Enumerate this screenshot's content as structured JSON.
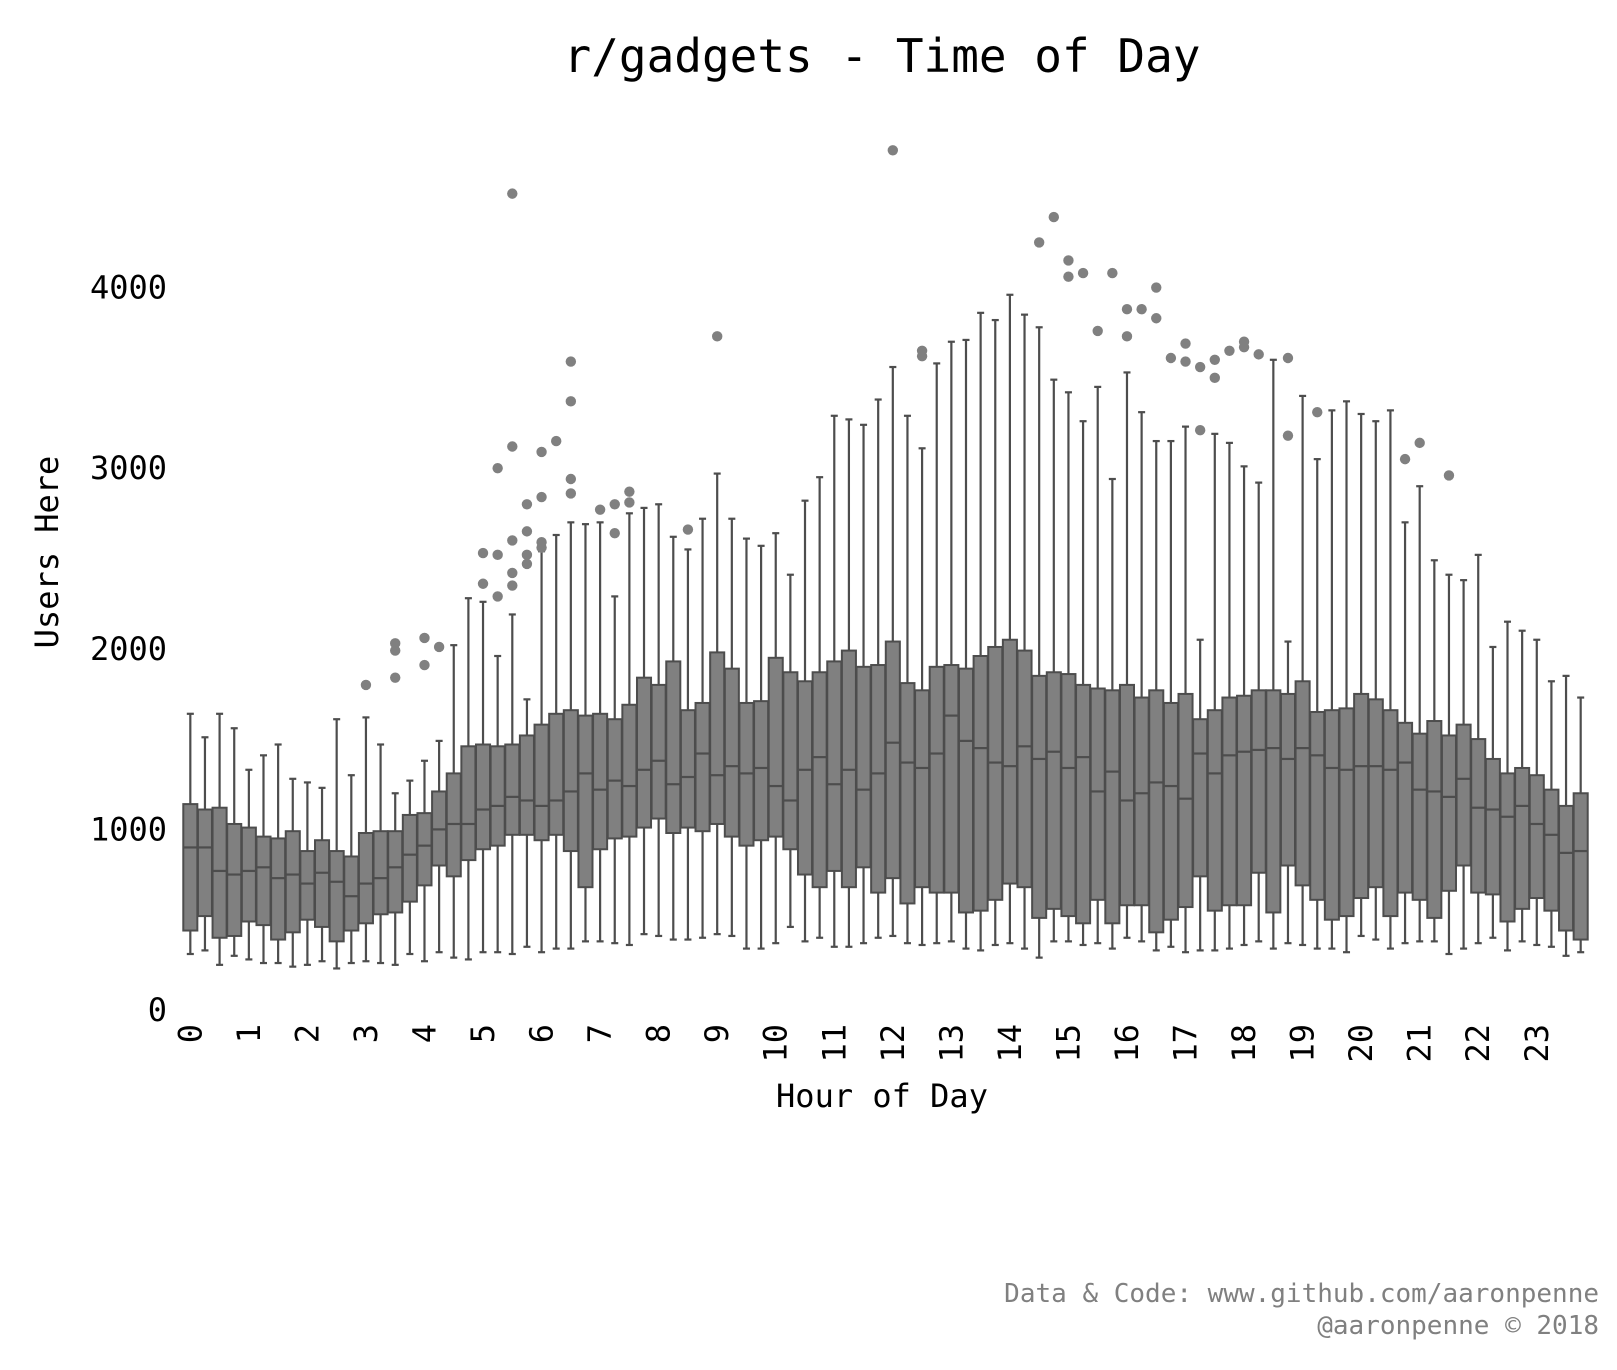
{
  "chart_data": {
    "type": "box",
    "title": "r/gadgets - Time of Day",
    "xlabel": "Hour of Day",
    "ylabel": "Users Here",
    "ylim": [
      0,
      4900
    ],
    "yticks": [
      0,
      1000,
      2000,
      3000,
      4000
    ],
    "xticks": [
      "0",
      "1",
      "2",
      "3",
      "4",
      "5",
      "6",
      "7",
      "8",
      "9",
      "10",
      "11",
      "12",
      "13",
      "14",
      "15",
      "16",
      "17",
      "18",
      "19",
      "20",
      "21",
      "22",
      "23"
    ],
    "boxes_per_hour": 4,
    "grid": false,
    "legend": "none",
    "colors": {
      "box_fill": "#808080",
      "box_edge": "#4d4d4d",
      "outlier": "#808080"
    },
    "series": [
      {
        "wl": 310,
        "q1": 440,
        "med": 900,
        "q3": 1140,
        "wh": 1640,
        "out": []
      },
      {
        "wl": 330,
        "q1": 520,
        "med": 900,
        "q3": 1110,
        "wh": 1510,
        "out": []
      },
      {
        "wl": 250,
        "q1": 400,
        "med": 770,
        "q3": 1120,
        "wh": 1640,
        "out": []
      },
      {
        "wl": 300,
        "q1": 410,
        "med": 750,
        "q3": 1030,
        "wh": 1560,
        "out": []
      },
      {
        "wl": 280,
        "q1": 490,
        "med": 770,
        "q3": 1010,
        "wh": 1330,
        "out": []
      },
      {
        "wl": 260,
        "q1": 470,
        "med": 790,
        "q3": 960,
        "wh": 1410,
        "out": []
      },
      {
        "wl": 260,
        "q1": 390,
        "med": 730,
        "q3": 950,
        "wh": 1470,
        "out": []
      },
      {
        "wl": 240,
        "q1": 430,
        "med": 750,
        "q3": 990,
        "wh": 1280,
        "out": []
      },
      {
        "wl": 250,
        "q1": 500,
        "med": 700,
        "q3": 880,
        "wh": 1260,
        "out": []
      },
      {
        "wl": 270,
        "q1": 460,
        "med": 760,
        "q3": 940,
        "wh": 1230,
        "out": []
      },
      {
        "wl": 230,
        "q1": 380,
        "med": 710,
        "q3": 880,
        "wh": 1610,
        "out": []
      },
      {
        "wl": 260,
        "q1": 440,
        "med": 630,
        "q3": 850,
        "wh": 1300,
        "out": []
      },
      {
        "wl": 270,
        "q1": 480,
        "med": 700,
        "q3": 980,
        "wh": 1620,
        "out": [
          1800
        ]
      },
      {
        "wl": 260,
        "q1": 530,
        "med": 730,
        "q3": 990,
        "wh": 1470,
        "out": []
      },
      {
        "wl": 250,
        "q1": 540,
        "med": 790,
        "q3": 990,
        "wh": 1200,
        "out": [
          2030,
          1990,
          1840
        ]
      },
      {
        "wl": 310,
        "q1": 600,
        "med": 860,
        "q3": 1080,
        "wh": 1270,
        "out": []
      },
      {
        "wl": 270,
        "q1": 690,
        "med": 910,
        "q3": 1090,
        "wh": 1380,
        "out": [
          2060,
          1910
        ]
      },
      {
        "wl": 320,
        "q1": 800,
        "med": 1000,
        "q3": 1210,
        "wh": 1490,
        "out": [
          2010
        ]
      },
      {
        "wl": 290,
        "q1": 740,
        "med": 1030,
        "q3": 1310,
        "wh": 2020,
        "out": []
      },
      {
        "wl": 280,
        "q1": 830,
        "med": 1030,
        "q3": 1460,
        "wh": 2280,
        "out": []
      },
      {
        "wl": 320,
        "q1": 890,
        "med": 1110,
        "q3": 1470,
        "wh": 2260,
        "out": [
          2530,
          2360
        ]
      },
      {
        "wl": 320,
        "q1": 910,
        "med": 1130,
        "q3": 1460,
        "wh": 1960,
        "out": [
          3000,
          2520,
          2290
        ]
      },
      {
        "wl": 310,
        "q1": 970,
        "med": 1180,
        "q3": 1470,
        "wh": 2190,
        "out": [
          4520,
          3120,
          2600,
          2420,
          2350
        ]
      },
      {
        "wl": 350,
        "q1": 970,
        "med": 1160,
        "q3": 1520,
        "wh": 1720,
        "out": [
          2800,
          2650,
          2520,
          2470
        ]
      },
      {
        "wl": 320,
        "q1": 940,
        "med": 1130,
        "q3": 1580,
        "wh": 2540,
        "out": [
          3090,
          2840,
          2590,
          2560
        ]
      },
      {
        "wl": 340,
        "q1": 970,
        "med": 1160,
        "q3": 1640,
        "wh": 2630,
        "out": [
          3150
        ]
      },
      {
        "wl": 340,
        "q1": 880,
        "med": 1210,
        "q3": 1660,
        "wh": 2700,
        "out": [
          3590,
          3370,
          2940,
          2860
        ]
      },
      {
        "wl": 380,
        "q1": 680,
        "med": 1310,
        "q3": 1630,
        "wh": 2690,
        "out": []
      },
      {
        "wl": 380,
        "q1": 890,
        "med": 1220,
        "q3": 1640,
        "wh": 2700,
        "out": [
          2770
        ]
      },
      {
        "wl": 370,
        "q1": 950,
        "med": 1270,
        "q3": 1610,
        "wh": 2290,
        "out": [
          2800,
          2640
        ]
      },
      {
        "wl": 360,
        "q1": 960,
        "med": 1240,
        "q3": 1690,
        "wh": 2750,
        "out": [
          2870,
          2810
        ]
      },
      {
        "wl": 420,
        "q1": 1010,
        "med": 1330,
        "q3": 1840,
        "wh": 2780,
        "out": []
      },
      {
        "wl": 410,
        "q1": 1060,
        "med": 1380,
        "q3": 1800,
        "wh": 2800,
        "out": []
      },
      {
        "wl": 390,
        "q1": 980,
        "med": 1250,
        "q3": 1930,
        "wh": 2620,
        "out": []
      },
      {
        "wl": 390,
        "q1": 1010,
        "med": 1290,
        "q3": 1660,
        "wh": 2550,
        "out": [
          2660
        ]
      },
      {
        "wl": 400,
        "q1": 990,
        "med": 1420,
        "q3": 1700,
        "wh": 2720,
        "out": []
      },
      {
        "wl": 420,
        "q1": 1030,
        "med": 1300,
        "q3": 1980,
        "wh": 2970,
        "out": [
          3730
        ]
      },
      {
        "wl": 410,
        "q1": 960,
        "med": 1350,
        "q3": 1890,
        "wh": 2720,
        "out": []
      },
      {
        "wl": 340,
        "q1": 910,
        "med": 1310,
        "q3": 1700,
        "wh": 2610,
        "out": []
      },
      {
        "wl": 340,
        "q1": 940,
        "med": 1340,
        "q3": 1710,
        "wh": 2570,
        "out": []
      },
      {
        "wl": 370,
        "q1": 960,
        "med": 1240,
        "q3": 1950,
        "wh": 2640,
        "out": []
      },
      {
        "wl": 460,
        "q1": 890,
        "med": 1160,
        "q3": 1870,
        "wh": 2410,
        "out": []
      },
      {
        "wl": 380,
        "q1": 750,
        "med": 1330,
        "q3": 1820,
        "wh": 2820,
        "out": []
      },
      {
        "wl": 400,
        "q1": 680,
        "med": 1400,
        "q3": 1870,
        "wh": 2950,
        "out": []
      },
      {
        "wl": 350,
        "q1": 770,
        "med": 1250,
        "q3": 1930,
        "wh": 3290,
        "out": []
      },
      {
        "wl": 350,
        "q1": 680,
        "med": 1330,
        "q3": 1990,
        "wh": 3270,
        "out": []
      },
      {
        "wl": 370,
        "q1": 790,
        "med": 1220,
        "q3": 1900,
        "wh": 3240,
        "out": []
      },
      {
        "wl": 400,
        "q1": 650,
        "med": 1310,
        "q3": 1910,
        "wh": 3380,
        "out": []
      },
      {
        "wl": 410,
        "q1": 730,
        "med": 1480,
        "q3": 2040,
        "wh": 3560,
        "out": [
          4760
        ]
      },
      {
        "wl": 370,
        "q1": 590,
        "med": 1370,
        "q3": 1810,
        "wh": 3290,
        "out": []
      },
      {
        "wl": 360,
        "q1": 680,
        "med": 1340,
        "q3": 1770,
        "wh": 3110,
        "out": [
          3650,
          3620
        ]
      },
      {
        "wl": 370,
        "q1": 650,
        "med": 1420,
        "q3": 1900,
        "wh": 3580,
        "out": []
      },
      {
        "wl": 380,
        "q1": 650,
        "med": 1630,
        "q3": 1910,
        "wh": 3700,
        "out": []
      },
      {
        "wl": 340,
        "q1": 540,
        "med": 1490,
        "q3": 1890,
        "wh": 3710,
        "out": []
      },
      {
        "wl": 330,
        "q1": 550,
        "med": 1450,
        "q3": 1960,
        "wh": 3860,
        "out": []
      },
      {
        "wl": 360,
        "q1": 610,
        "med": 1370,
        "q3": 2010,
        "wh": 3820,
        "out": []
      },
      {
        "wl": 370,
        "q1": 700,
        "med": 1350,
        "q3": 2050,
        "wh": 3960,
        "out": []
      },
      {
        "wl": 340,
        "q1": 680,
        "med": 1460,
        "q3": 1990,
        "wh": 3850,
        "out": []
      },
      {
        "wl": 290,
        "q1": 510,
        "med": 1390,
        "q3": 1850,
        "wh": 3780,
        "out": [
          4250
        ]
      },
      {
        "wl": 380,
        "q1": 560,
        "med": 1430,
        "q3": 1870,
        "wh": 3490,
        "out": [
          4390
        ]
      },
      {
        "wl": 380,
        "q1": 520,
        "med": 1340,
        "q3": 1860,
        "wh": 3420,
        "out": [
          4150,
          4060
        ]
      },
      {
        "wl": 360,
        "q1": 480,
        "med": 1400,
        "q3": 1800,
        "wh": 3260,
        "out": [
          4080
        ]
      },
      {
        "wl": 370,
        "q1": 610,
        "med": 1210,
        "q3": 1780,
        "wh": 3450,
        "out": [
          3760
        ]
      },
      {
        "wl": 340,
        "q1": 480,
        "med": 1320,
        "q3": 1770,
        "wh": 2940,
        "out": [
          4080
        ]
      },
      {
        "wl": 400,
        "q1": 580,
        "med": 1160,
        "q3": 1800,
        "wh": 3530,
        "out": [
          3880,
          3730
        ]
      },
      {
        "wl": 380,
        "q1": 580,
        "med": 1200,
        "q3": 1730,
        "wh": 3310,
        "out": [
          3880
        ]
      },
      {
        "wl": 330,
        "q1": 430,
        "med": 1260,
        "q3": 1770,
        "wh": 3150,
        "out": [
          4000,
          3830
        ]
      },
      {
        "wl": 350,
        "q1": 500,
        "med": 1240,
        "q3": 1700,
        "wh": 3150,
        "out": [
          3610
        ]
      },
      {
        "wl": 320,
        "q1": 570,
        "med": 1170,
        "q3": 1750,
        "wh": 3230,
        "out": [
          3690,
          3590
        ]
      },
      {
        "wl": 330,
        "q1": 740,
        "med": 1420,
        "q3": 1610,
        "wh": 2050,
        "out": [
          3560,
          3210
        ]
      },
      {
        "wl": 330,
        "q1": 550,
        "med": 1310,
        "q3": 1660,
        "wh": 3190,
        "out": [
          3600,
          3500
        ]
      },
      {
        "wl": 340,
        "q1": 580,
        "med": 1410,
        "q3": 1730,
        "wh": 3140,
        "out": [
          3650
        ]
      },
      {
        "wl": 360,
        "q1": 580,
        "med": 1430,
        "q3": 1740,
        "wh": 3010,
        "out": [
          3700,
          3670
        ]
      },
      {
        "wl": 380,
        "q1": 760,
        "med": 1440,
        "q3": 1770,
        "wh": 2920,
        "out": [
          3630
        ]
      },
      {
        "wl": 340,
        "q1": 540,
        "med": 1450,
        "q3": 1770,
        "wh": 3600,
        "out": []
      },
      {
        "wl": 370,
        "q1": 800,
        "med": 1390,
        "q3": 1750,
        "wh": 2040,
        "out": [
          3610,
          3180
        ]
      },
      {
        "wl": 360,
        "q1": 690,
        "med": 1450,
        "q3": 1820,
        "wh": 3400,
        "out": []
      },
      {
        "wl": 340,
        "q1": 610,
        "med": 1410,
        "q3": 1650,
        "wh": 3050,
        "out": [
          3310
        ]
      },
      {
        "wl": 340,
        "q1": 500,
        "med": 1340,
        "q3": 1660,
        "wh": 3320,
        "out": []
      },
      {
        "wl": 320,
        "q1": 520,
        "med": 1330,
        "q3": 1670,
        "wh": 3370,
        "out": []
      },
      {
        "wl": 410,
        "q1": 620,
        "med": 1350,
        "q3": 1750,
        "wh": 3300,
        "out": []
      },
      {
        "wl": 390,
        "q1": 680,
        "med": 1350,
        "q3": 1720,
        "wh": 3260,
        "out": []
      },
      {
        "wl": 340,
        "q1": 520,
        "med": 1330,
        "q3": 1660,
        "wh": 3320,
        "out": []
      },
      {
        "wl": 370,
        "q1": 650,
        "med": 1370,
        "q3": 1590,
        "wh": 2700,
        "out": [
          3050
        ]
      },
      {
        "wl": 380,
        "q1": 610,
        "med": 1220,
        "q3": 1530,
        "wh": 2900,
        "out": [
          3140
        ]
      },
      {
        "wl": 380,
        "q1": 510,
        "med": 1210,
        "q3": 1600,
        "wh": 2490,
        "out": []
      },
      {
        "wl": 310,
        "q1": 660,
        "med": 1180,
        "q3": 1520,
        "wh": 2410,
        "out": [
          2960
        ]
      },
      {
        "wl": 340,
        "q1": 800,
        "med": 1280,
        "q3": 1580,
        "wh": 2380,
        "out": []
      },
      {
        "wl": 370,
        "q1": 650,
        "med": 1120,
        "q3": 1500,
        "wh": 2520,
        "out": []
      },
      {
        "wl": 400,
        "q1": 640,
        "med": 1110,
        "q3": 1390,
        "wh": 2010,
        "out": []
      },
      {
        "wl": 330,
        "q1": 490,
        "med": 1070,
        "q3": 1310,
        "wh": 2150,
        "out": []
      },
      {
        "wl": 380,
        "q1": 560,
        "med": 1130,
        "q3": 1340,
        "wh": 2100,
        "out": []
      },
      {
        "wl": 360,
        "q1": 620,
        "med": 1030,
        "q3": 1300,
        "wh": 2050,
        "out": []
      },
      {
        "wl": 350,
        "q1": 550,
        "med": 970,
        "q3": 1220,
        "wh": 1820,
        "out": []
      },
      {
        "wl": 300,
        "q1": 440,
        "med": 870,
        "q3": 1130,
        "wh": 1850,
        "out": []
      },
      {
        "wl": 320,
        "q1": 390,
        "med": 880,
        "q3": 1200,
        "wh": 1730,
        "out": []
      }
    ]
  },
  "footer": {
    "line1": "Data & Code: www.github.com/aaronpenne",
    "line2": "@aaronpenne © 2018"
  }
}
